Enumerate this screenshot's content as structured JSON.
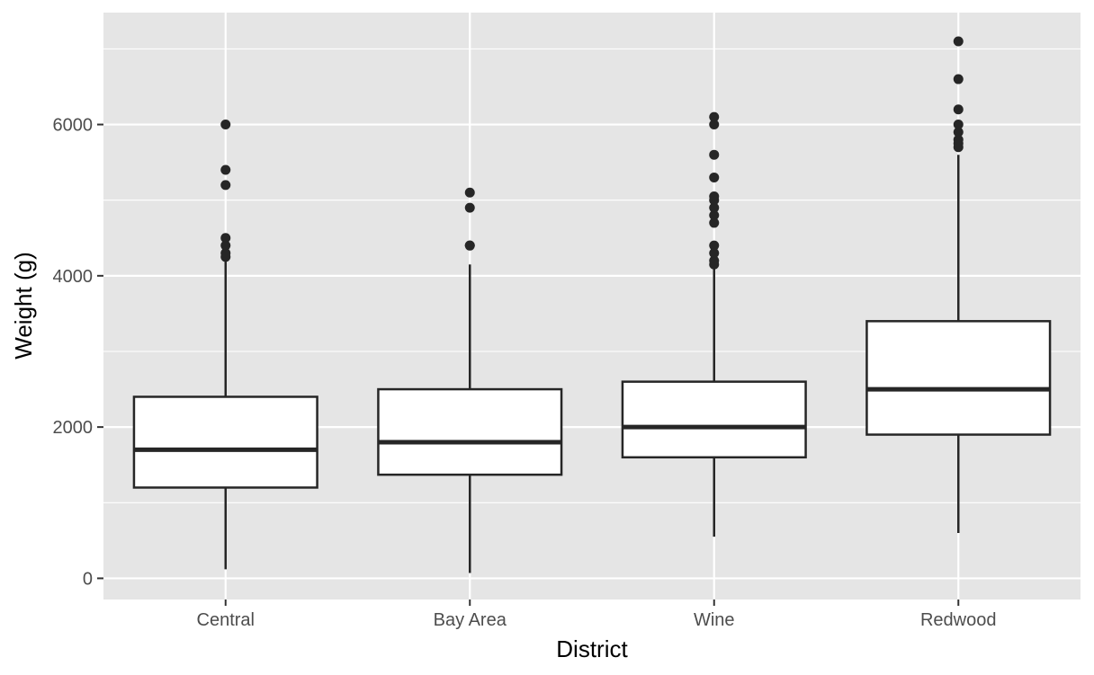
{
  "chart_data": {
    "type": "boxplot",
    "title": "",
    "xlabel": "District",
    "ylabel": "Weight (g)",
    "ylim": [
      -280,
      7480
    ],
    "y_ticks": [
      0,
      2000,
      4000,
      6000
    ],
    "y_minor_ticks": [
      1000,
      3000,
      5000,
      7000
    ],
    "grid": true,
    "legend": "none",
    "colors": {
      "panel_background": "#e5e5e5",
      "grid": "#ffffff",
      "box_fill": "#ffffff",
      "box_line": "#262626",
      "outlier": "#262626",
      "tick_text": "#4d4d4d"
    },
    "categories": [
      "Central",
      "Bay Area",
      "Wine",
      "Redwood"
    ],
    "boxes": [
      {
        "category": "Central",
        "whisker_low": 120,
        "q1": 1200,
        "median": 1700,
        "q3": 2400,
        "whisker_high": 4200,
        "outliers": [
          4250,
          4300,
          4400,
          4500,
          5200,
          5400,
          6000
        ]
      },
      {
        "category": "Bay Area",
        "whisker_low": 70,
        "q1": 1370,
        "median": 1800,
        "q3": 2500,
        "whisker_high": 4150,
        "outliers": [
          4400,
          4400,
          4900,
          5100
        ]
      },
      {
        "category": "Wine",
        "whisker_low": 550,
        "q1": 1600,
        "median": 2000,
        "q3": 2600,
        "whisker_high": 4100,
        "outliers": [
          4150,
          4200,
          4300,
          4400,
          4700,
          4800,
          4900,
          5000,
          5050,
          5300,
          5600,
          6000,
          6100
        ]
      },
      {
        "category": "Redwood",
        "whisker_low": 600,
        "q1": 1900,
        "median": 2500,
        "q3": 3400,
        "whisker_high": 5600,
        "outliers": [
          5700,
          5750,
          5800,
          5900,
          6000,
          6200,
          6600,
          7100
        ]
      }
    ]
  }
}
